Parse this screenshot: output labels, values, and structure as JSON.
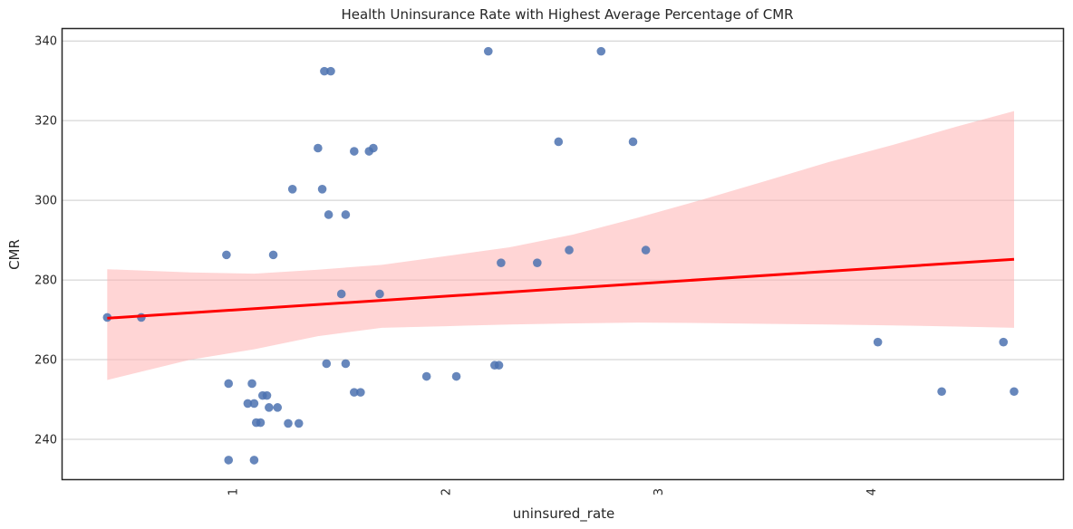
{
  "chart_data": {
    "type": "scatter",
    "title": "Health Uninsurance Rate with Highest Average Percentage of CMR",
    "xlabel": "uninsured_rate",
    "ylabel": "CMR",
    "xlim": [
      0.2,
      4.9
    ],
    "ylim": [
      230,
      343
    ],
    "x_ticks": [
      1,
      2,
      3,
      4
    ],
    "y_ticks": [
      240,
      260,
      280,
      300,
      320,
      340
    ],
    "grid": "horizontal",
    "colors": {
      "points": "#4c72b0",
      "regression": "#ff0000",
      "band": "#ffb3b3"
    },
    "points": [
      {
        "x": 0.41,
        "y": 270.6
      },
      {
        "x": 0.57,
        "y": 270.6
      },
      {
        "x": 0.97,
        "y": 286.3
      },
      {
        "x": 0.98,
        "y": 254.0
      },
      {
        "x": 0.98,
        "y": 234.8
      },
      {
        "x": 1.07,
        "y": 249.0
      },
      {
        "x": 1.09,
        "y": 254.0
      },
      {
        "x": 1.1,
        "y": 249.0
      },
      {
        "x": 1.1,
        "y": 234.8
      },
      {
        "x": 1.11,
        "y": 244.2
      },
      {
        "x": 1.13,
        "y": 244.2
      },
      {
        "x": 1.14,
        "y": 251.0
      },
      {
        "x": 1.16,
        "y": 251.0
      },
      {
        "x": 1.17,
        "y": 248.0
      },
      {
        "x": 1.19,
        "y": 286.3
      },
      {
        "x": 1.21,
        "y": 248.0
      },
      {
        "x": 1.26,
        "y": 244.0
      },
      {
        "x": 1.28,
        "y": 302.8
      },
      {
        "x": 1.31,
        "y": 244.0
      },
      {
        "x": 1.4,
        "y": 313.1
      },
      {
        "x": 1.42,
        "y": 302.8
      },
      {
        "x": 1.43,
        "y": 332.4
      },
      {
        "x": 1.44,
        "y": 259.0
      },
      {
        "x": 1.45,
        "y": 296.4
      },
      {
        "x": 1.46,
        "y": 332.4
      },
      {
        "x": 1.51,
        "y": 276.5
      },
      {
        "x": 1.53,
        "y": 296.4
      },
      {
        "x": 1.53,
        "y": 259.0
      },
      {
        "x": 1.57,
        "y": 312.3
      },
      {
        "x": 1.57,
        "y": 251.8
      },
      {
        "x": 1.6,
        "y": 251.8
      },
      {
        "x": 1.64,
        "y": 312.3
      },
      {
        "x": 1.66,
        "y": 313.1
      },
      {
        "x": 1.69,
        "y": 276.5
      },
      {
        "x": 1.91,
        "y": 255.8
      },
      {
        "x": 2.05,
        "y": 255.8
      },
      {
        "x": 2.2,
        "y": 337.4
      },
      {
        "x": 2.23,
        "y": 258.6
      },
      {
        "x": 2.25,
        "y": 258.6
      },
      {
        "x": 2.26,
        "y": 284.3
      },
      {
        "x": 2.43,
        "y": 284.3
      },
      {
        "x": 2.53,
        "y": 314.7
      },
      {
        "x": 2.58,
        "y": 287.5
      },
      {
        "x": 2.73,
        "y": 337.4
      },
      {
        "x": 2.88,
        "y": 314.7
      },
      {
        "x": 2.94,
        "y": 287.5
      },
      {
        "x": 4.03,
        "y": 264.4
      },
      {
        "x": 4.33,
        "y": 252.0
      },
      {
        "x": 4.62,
        "y": 264.4
      },
      {
        "x": 4.67,
        "y": 252.0
      }
    ],
    "regression": {
      "x": [
        0.41,
        4.67
      ],
      "y": [
        270.4,
        285.2
      ]
    },
    "confidence_band": {
      "x": [
        0.41,
        0.8,
        1.1,
        1.4,
        1.7,
        2.0,
        2.3,
        2.6,
        2.9,
        3.2,
        3.5,
        3.8,
        4.1,
        4.4,
        4.67
      ],
      "upper": [
        282.7,
        281.9,
        281.6,
        282.6,
        283.8,
        286.0,
        288.2,
        291.4,
        295.6,
        300.1,
        304.8,
        309.6,
        313.9,
        318.5,
        322.4
      ],
      "lower": [
        254.9,
        260.0,
        262.6,
        265.9,
        268.0,
        268.4,
        268.8,
        269.1,
        269.3,
        269.2,
        269.0,
        268.8,
        268.6,
        268.3,
        268.0
      ]
    }
  }
}
